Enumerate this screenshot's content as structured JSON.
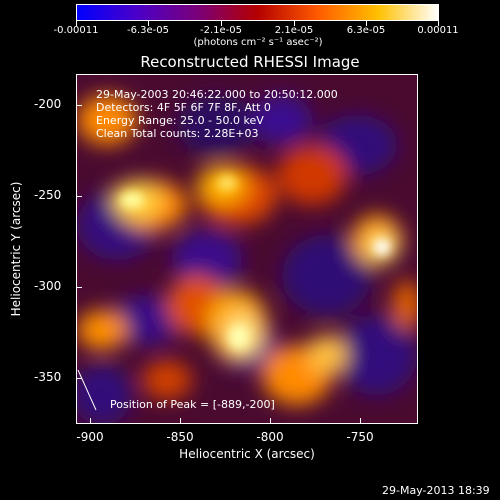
{
  "colorbar": {
    "tick_labels": [
      "-0.00011",
      "-6.3e-05",
      "-2.1e-05",
      "2.1e-05",
      "6.3e-05",
      "0.00011"
    ],
    "units": "(photons cm⁻² s⁻¹ asec⁻²)",
    "colors": [
      "#0000ff",
      "#4b00c8",
      "#7a007a",
      "#b50000",
      "#ff5a00",
      "#ffc000",
      "#ffffff"
    ]
  },
  "title": "Reconstructed RHESSI Image",
  "info_lines": [
    "29-May-2003 20:46:22.000 to 20:50:12.000",
    "Detectors: 4F 5F 6F 7F 8F, Att 0",
    "Energy Range: 25.0 - 50.0 keV",
    "Clean    Total counts: 2.28E+03"
  ],
  "peak_label": "Position of Peak = [-889,-200]",
  "x_axis": {
    "label": "Heliocentric X (arcsec)",
    "ticks": [
      "-900",
      "-850",
      "-800",
      "-750"
    ],
    "range": [
      -905,
      -717
    ]
  },
  "y_axis": {
    "label": "Heliocentric Y (arcsec)",
    "ticks": [
      "-200",
      "-250",
      "-300",
      "-350"
    ],
    "range": [
      -377,
      -185
    ]
  },
  "timestamp": "29-May-2013 18:39"
}
